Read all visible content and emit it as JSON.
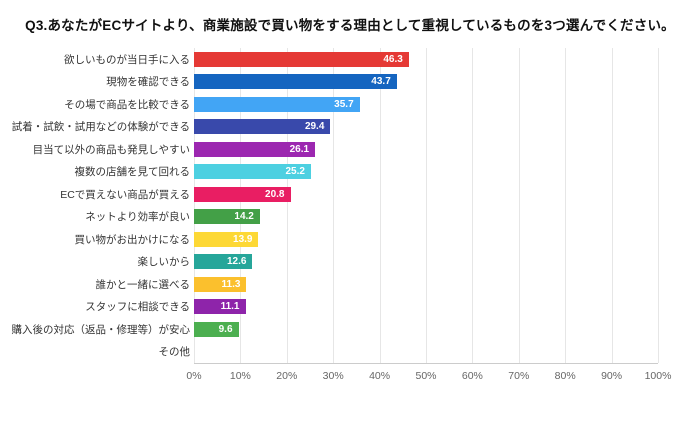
{
  "chart_data": {
    "type": "bar",
    "orientation": "horizontal",
    "title": "Q3.あなたがECサイトより、商業施設で買い物をする理由として重視しているものを3つ選んでください。",
    "categories": [
      "欲しいものが当日手に入る",
      "現物を確認できる",
      "その場で商品を比較できる",
      "試着・試飲・試用などの体験ができる",
      "目当て以外の商品も発見しやすい",
      "複数の店舗を見て回れる",
      "ECで買えない商品が買える",
      "ネットより効率が良い",
      "買い物がお出かけになる",
      "楽しいから",
      "誰かと一緒に選べる",
      "スタッフに相談できる",
      "購入後の対応（返品・修理等）が安心",
      "その他"
    ],
    "values": [
      46.3,
      43.7,
      35.7,
      29.4,
      26.1,
      25.2,
      20.8,
      14.2,
      13.9,
      12.6,
      11.3,
      11.1,
      9.6,
      0
    ],
    "bar_colors": [
      "#e53935",
      "#1565c0",
      "#42a5f5",
      "#3949ab",
      "#9c27b0",
      "#4dd0e1",
      "#e91e63",
      "#43a047",
      "#fdd835",
      "#26a69a",
      "#fbc02d",
      "#8e24aa",
      "#4caf50",
      "#cccccc"
    ],
    "value_label_color": "#ffffff",
    "x_ticks": [
      "0%",
      "10%",
      "20%",
      "30%",
      "40%",
      "50%",
      "60%",
      "70%",
      "80%",
      "90%",
      "100%"
    ],
    "xlim": [
      0,
      100
    ],
    "xlabel": "",
    "ylabel": "",
    "grid": true,
    "legend": "none"
  }
}
